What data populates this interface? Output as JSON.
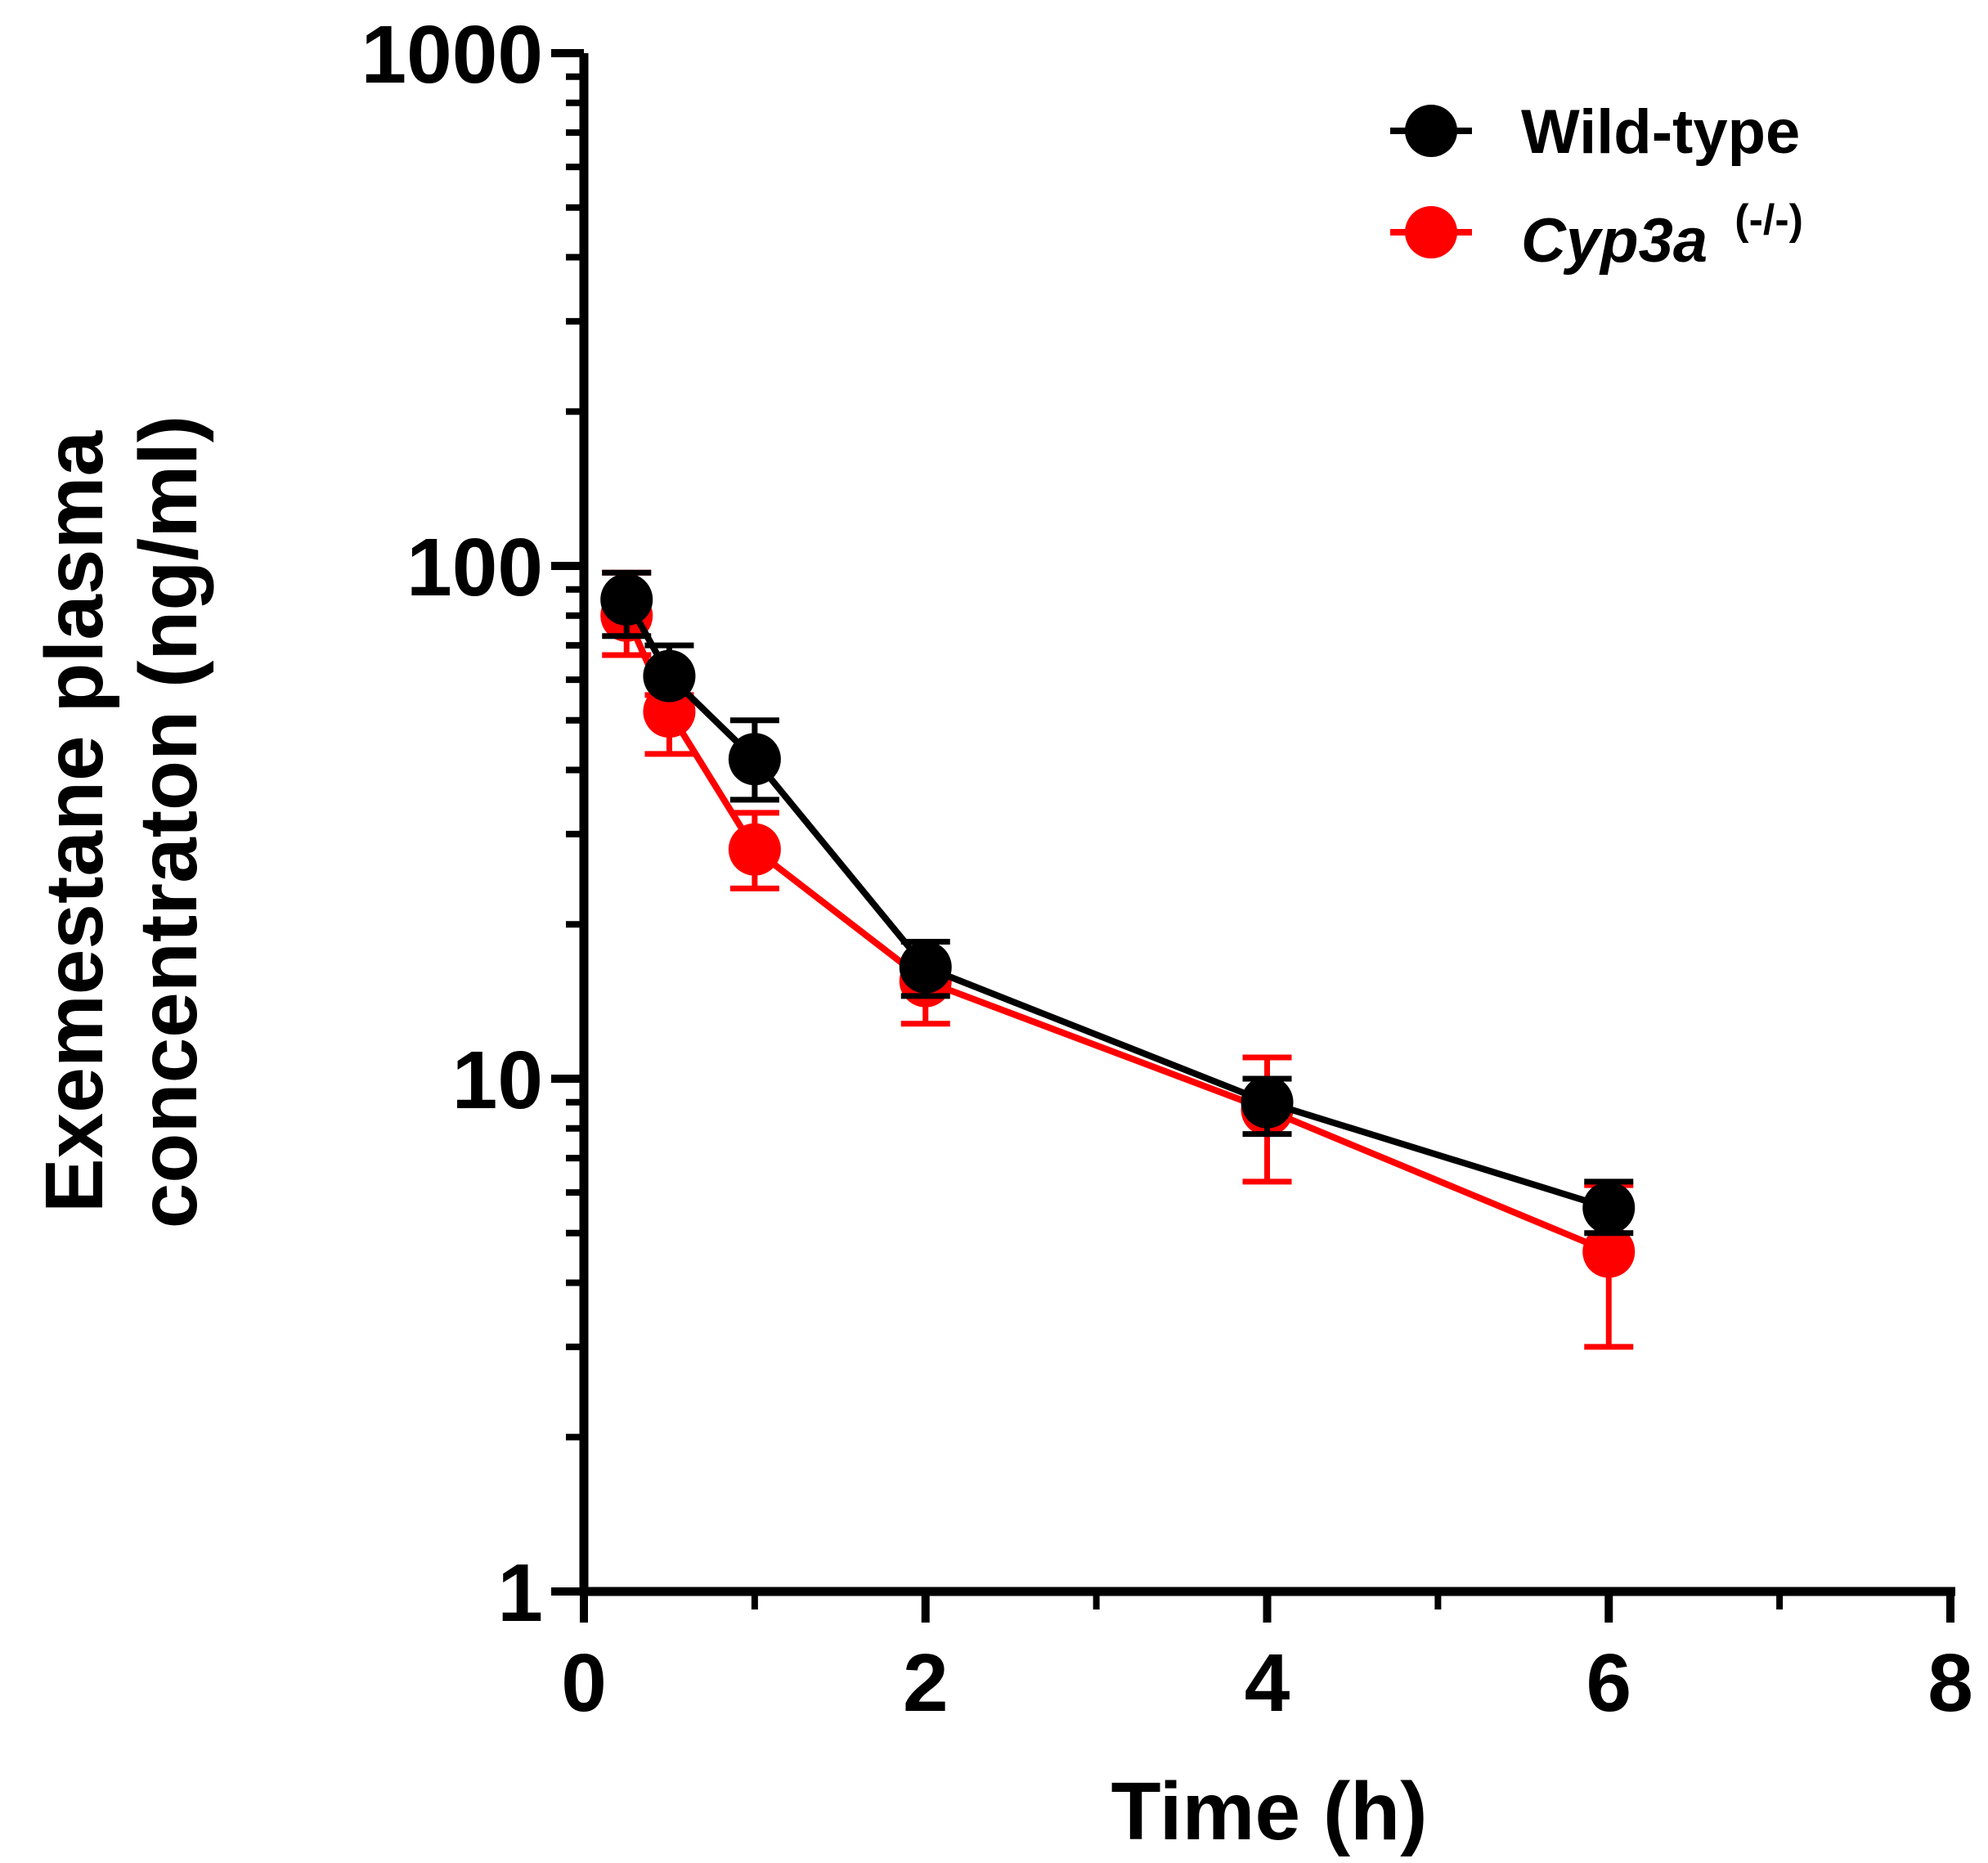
{
  "chart_data": {
    "type": "line",
    "title": "",
    "xlabel": "Time (h)",
    "ylabel_line1": "Exemestane plasma",
    "ylabel_line2": "concentraton (ng/ml)",
    "yscale": "log",
    "xlim": [
      0,
      8
    ],
    "ylim": [
      1,
      1000
    ],
    "x_ticks": [
      0,
      2,
      4,
      6,
      8
    ],
    "x_tick_labels": [
      "0",
      "2",
      "4",
      "6",
      "8"
    ],
    "x_minor_ticks": [
      1,
      3,
      5,
      7
    ],
    "y_ticks": [
      1,
      10,
      100,
      1000
    ],
    "y_tick_labels": [
      "1",
      "10",
      "100",
      "1000"
    ],
    "legend_placement": "top-right",
    "series": [
      {
        "name": "Wild-type",
        "color": "#000000",
        "x": [
          0.25,
          0.5,
          1,
          2,
          4,
          6
        ],
        "y": [
          86,
          61,
          42,
          16.5,
          9,
          5.6
        ],
        "err_upper": [
          97,
          70,
          50,
          18.5,
          10,
          6.3
        ],
        "err_lower": [
          73,
          61,
          35,
          14.5,
          7.8,
          5.0
        ]
      },
      {
        "name": "Cyp3a",
        "name_superscript": "(-/-)",
        "color": "#ff0000",
        "x": [
          0.25,
          0.5,
          1,
          2,
          4,
          6
        ],
        "y": [
          80,
          52,
          28,
          15.5,
          8.7,
          4.6
        ],
        "err_upper": [
          97,
          56,
          33,
          16.7,
          11,
          6.2
        ],
        "err_lower": [
          67,
          43,
          23.5,
          12.8,
          6.3,
          3.0
        ]
      }
    ]
  }
}
